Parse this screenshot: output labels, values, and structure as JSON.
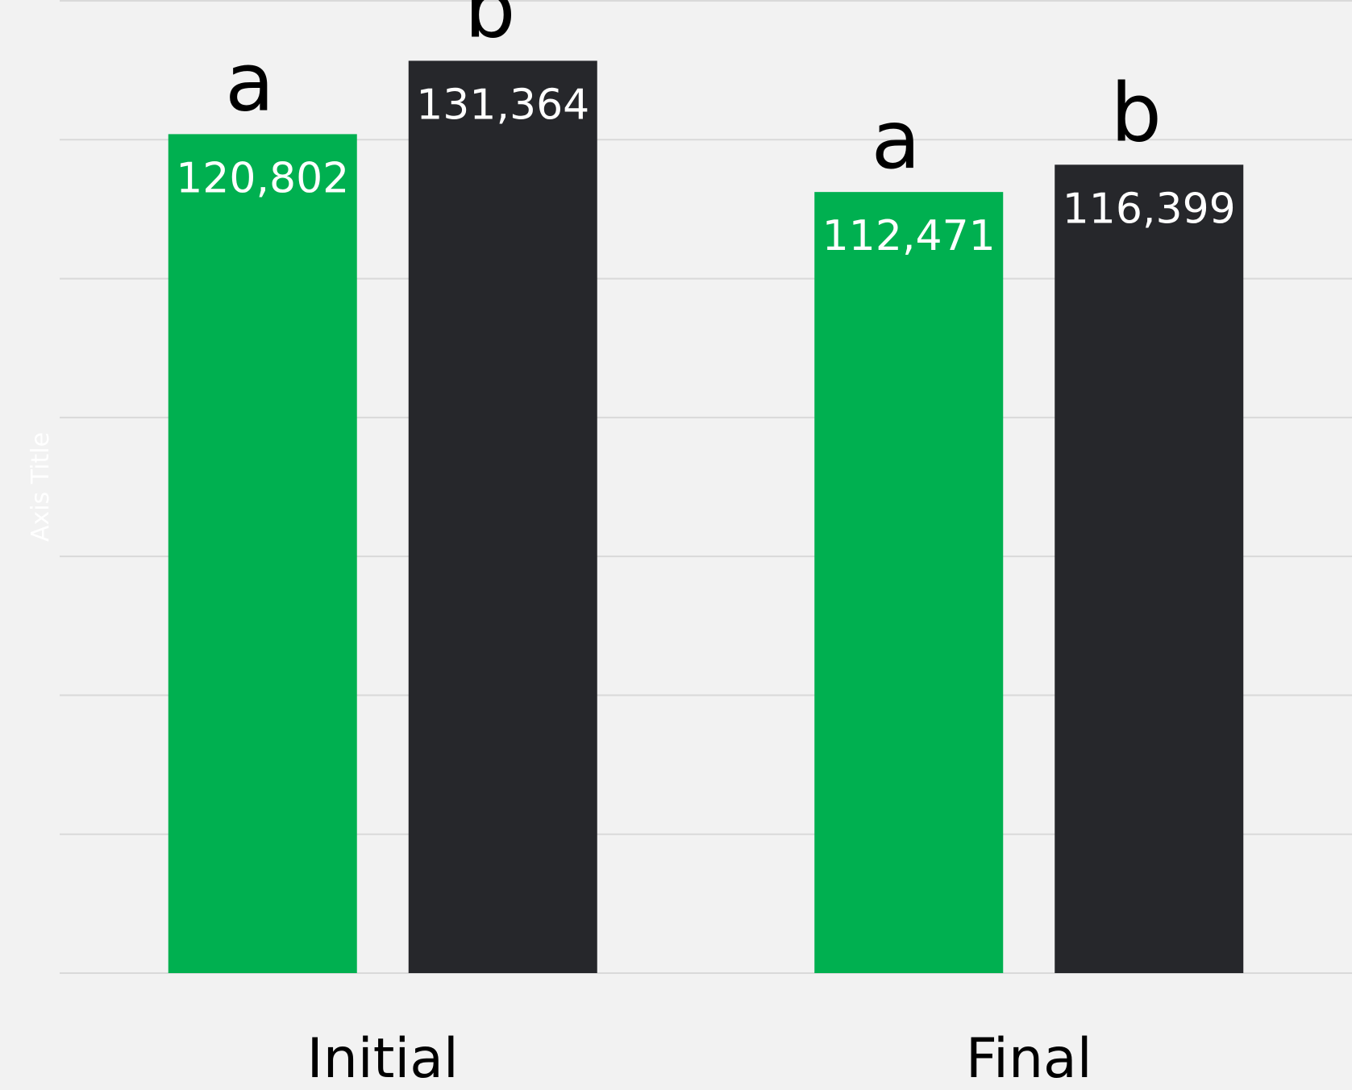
{
  "chart_data": {
    "type": "bar",
    "categories": [
      "Initial",
      "Final"
    ],
    "series": [
      {
        "values": [
          120802,
          112471
        ],
        "color": "#00b050",
        "value_labels": [
          "120,802",
          "112,471"
        ],
        "letters": [
          "a",
          "a"
        ]
      },
      {
        "values": [
          131364,
          116399
        ],
        "color": "#26272b",
        "value_labels": [
          "131,364",
          "116,399"
        ],
        "letters": [
          "b",
          "b"
        ]
      }
    ],
    "ylabel": "Axis Title",
    "ylim": [
      0,
      140000
    ],
    "gridline_step": 20000,
    "grid": true,
    "background": "#f2f2f2",
    "gridline_color": "#d9d9d9"
  }
}
